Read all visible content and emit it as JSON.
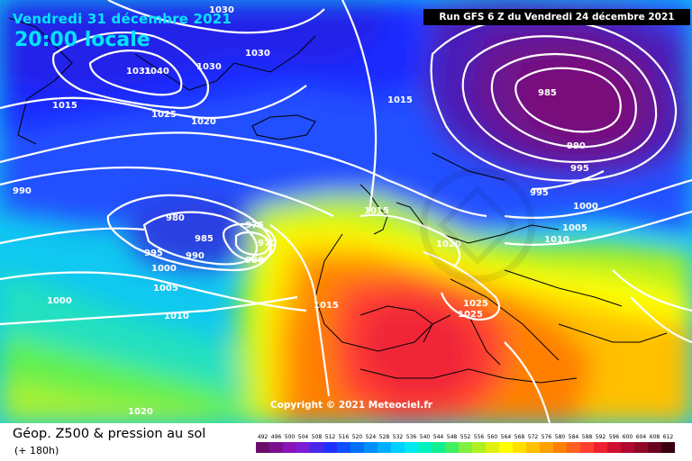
{
  "header": {
    "date": "Vendredi 31 décembre 2021",
    "local_time": "20:00 locale",
    "run_info": "Run GFS 6 Z du Vendredi 24 décembre 2021"
  },
  "map": {
    "copyright": "Copyright © 2021 Meteociel.fr",
    "isobar_labels": [
      {
        "id": "iso-1030-a",
        "text": "1030"
      },
      {
        "id": "iso-1030-b",
        "text": "1030"
      },
      {
        "id": "iso-1030-c",
        "text": "1030"
      },
      {
        "id": "iso-1031",
        "text": "1031"
      },
      {
        "id": "iso-1040",
        "text": "1040"
      },
      {
        "id": "iso-1015-a",
        "text": "1015"
      },
      {
        "id": "iso-1015-b",
        "text": "1015"
      },
      {
        "id": "iso-1015-c",
        "text": "1015"
      },
      {
        "id": "iso-1015-d",
        "text": "1015"
      },
      {
        "id": "iso-1025-a",
        "text": "1025"
      },
      {
        "id": "iso-1025-b",
        "text": "1025"
      },
      {
        "id": "iso-1025-c",
        "text": "1025"
      },
      {
        "id": "iso-1020-a",
        "text": "1020"
      },
      {
        "id": "iso-1020-b",
        "text": "1020"
      },
      {
        "id": "iso-1020-c",
        "text": "1020"
      },
      {
        "id": "iso-990-a",
        "text": "990"
      },
      {
        "id": "iso-990-b",
        "text": "990"
      },
      {
        "id": "iso-990-c",
        "text": "990"
      },
      {
        "id": "iso-980-a",
        "text": "980"
      },
      {
        "id": "iso-980-b",
        "text": "980"
      },
      {
        "id": "iso-985-a",
        "text": "985"
      },
      {
        "id": "iso-985-b",
        "text": "985"
      },
      {
        "id": "iso-975",
        "text": "975"
      },
      {
        "id": "iso-970",
        "text": "970"
      },
      {
        "id": "iso-995-a",
        "text": "995"
      },
      {
        "id": "iso-995-b",
        "text": "995"
      },
      {
        "id": "iso-995-c",
        "text": "995"
      },
      {
        "id": "iso-1000-a",
        "text": "1000"
      },
      {
        "id": "iso-1000-b",
        "text": "1000"
      },
      {
        "id": "iso-1000-c",
        "text": "1000"
      },
      {
        "id": "iso-1005-a",
        "text": "1005"
      },
      {
        "id": "iso-1005-b",
        "text": "1005"
      },
      {
        "id": "iso-1010-a",
        "text": "1010"
      },
      {
        "id": "iso-1010-b",
        "text": "1010"
      }
    ]
  },
  "footer": {
    "title": "Géop. Z500 & pression au sol",
    "subtitle": "(+ 180h)"
  },
  "legend": {
    "ticks": [
      "492",
      "496",
      "500",
      "504",
      "508",
      "512",
      "516",
      "520",
      "524",
      "528",
      "532",
      "536",
      "540",
      "544",
      "548",
      "552",
      "556",
      "560",
      "564",
      "568",
      "572",
      "576",
      "580",
      "584",
      "588",
      "592",
      "596",
      "600",
      "604",
      "608",
      "612"
    ],
    "colors": [
      "#6a0d6a",
      "#7a1090",
      "#8a14b8",
      "#7a1ed8",
      "#4a28e8",
      "#2030ff",
      "#1050ff",
      "#0070ff",
      "#0090ff",
      "#00b0ff",
      "#00d0ff",
      "#00e8f0",
      "#00f0c0",
      "#10f090",
      "#40f060",
      "#80f040",
      "#b0f020",
      "#e0f010",
      "#ffff00",
      "#ffe000",
      "#ffc000",
      "#ffa000",
      "#ff8000",
      "#ff6020",
      "#ff4030",
      "#f02030",
      "#d01030",
      "#b00830",
      "#900828",
      "#6a0420",
      "#3a0010"
    ]
  }
}
